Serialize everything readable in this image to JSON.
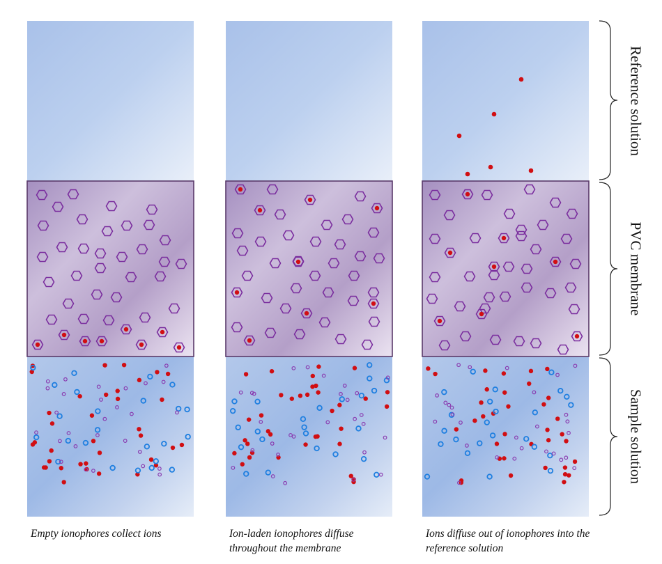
{
  "captions": [
    "Empty ionophores collect ions",
    "Ion-laden ionophores diffuse throughout the membrane",
    "Ions diffuse out of ionophores into the reference solution"
  ],
  "regions": {
    "reference": "Reference solution",
    "membrane": "PVC membrane",
    "sample": "Sample solution"
  },
  "colors": {
    "ion": "#d10e12",
    "ionophore": "#7a2d9e",
    "counter_ion": "#1f7fe0",
    "small_purple": "#8a3cb0",
    "membrane_border": "#5a3a6a"
  },
  "icons": [
    "hexagon-ionophore",
    "red-ion-dot",
    "blue-ion-circle",
    "purple-ion-circle"
  ]
}
